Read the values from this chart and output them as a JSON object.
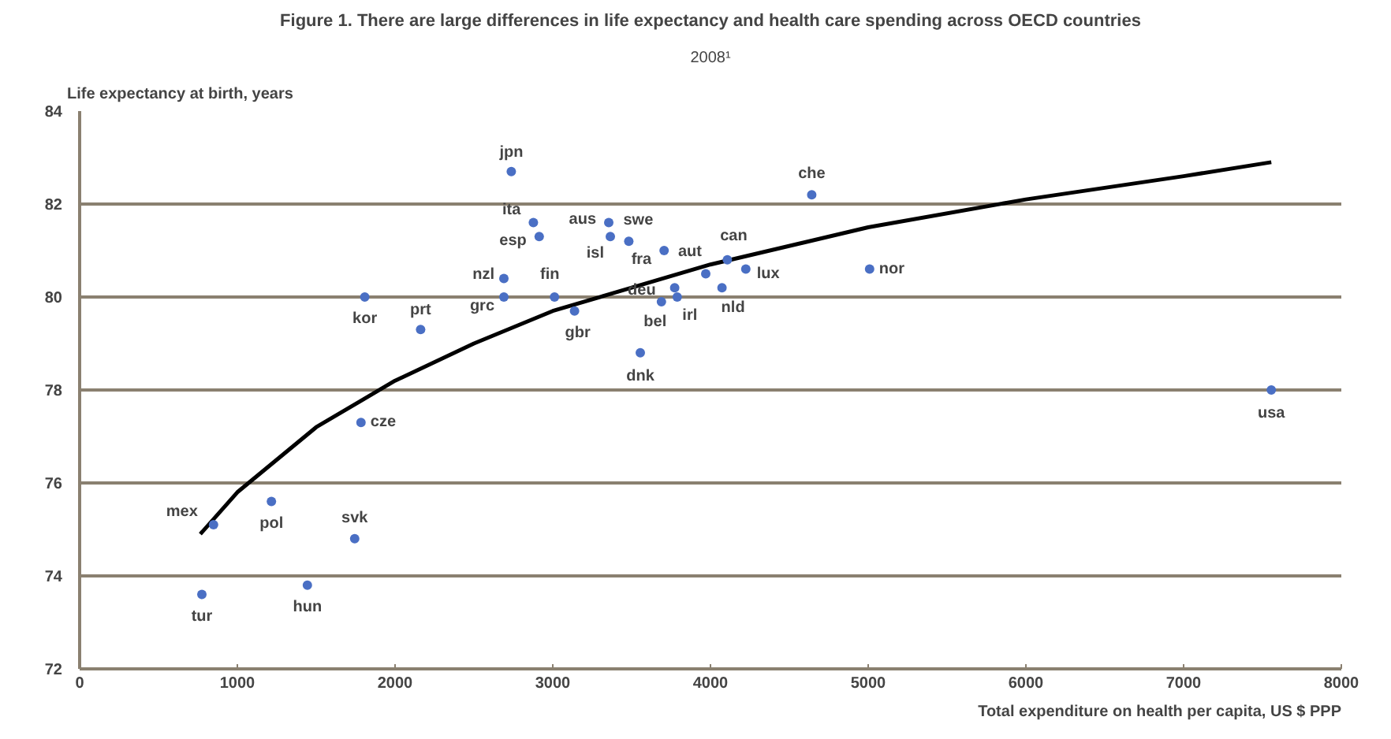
{
  "chart_data": {
    "type": "scatter",
    "title": "Figure 1. There are large differences in life expectancy and health care spending across OECD countries",
    "subtitle": "2008¹",
    "xlabel": "Total expenditure on health per capita, US $ PPP",
    "ylabel": "Life expectancy at birth, years",
    "xlim": [
      0,
      8000
    ],
    "xticks": [
      0,
      1000,
      2000,
      3000,
      4000,
      5000,
      6000,
      7000,
      8000
    ],
    "ylim": [
      72,
      84
    ],
    "yticks": [
      72,
      74,
      76,
      78,
      80,
      82,
      84
    ],
    "grid": "y",
    "series": [
      {
        "marker": "circle",
        "color": "#4a6fc4",
        "x": [
          2737,
          2877,
          2914,
          3355,
          3365,
          3482,
          3706,
          3970,
          4107,
          4224,
          4073,
          3773,
          3689,
          3789,
          3555,
          4642,
          5009,
          7556,
          2690,
          2690,
          3011,
          1808,
          2162,
          3138,
          1784,
          849,
          1216,
          1744,
          775,
          1444
        ],
        "values": [
          82.7,
          81.6,
          81.3,
          81.6,
          81.3,
          81.2,
          81.0,
          80.5,
          80.8,
          80.6,
          80.2,
          80.2,
          79.9,
          80.0,
          78.8,
          82.2,
          80.6,
          78.0,
          80.4,
          80.0,
          80.0,
          80.0,
          79.3,
          79.7,
          77.3,
          75.1,
          75.6,
          74.8,
          73.6,
          73.8
        ]
      },
      {
        "type": "line",
        "marker": "none",
        "color": "#000000",
        "line_style": "solid",
        "x": [
          765,
          1000,
          1500,
          2000,
          2500,
          3000,
          3500,
          4000,
          5000,
          6000,
          7000,
          7556
        ],
        "values": [
          74.9,
          75.8,
          77.2,
          78.2,
          79.0,
          79.7,
          80.2,
          80.7,
          81.5,
          82.1,
          82.6,
          82.9
        ]
      }
    ],
    "annotations": [
      {
        "text": "jpn",
        "x": 2737,
        "y": 82.7
      },
      {
        "text": "ita",
        "x": 2877,
        "y": 81.6
      },
      {
        "text": "esp",
        "x": 2914,
        "y": 81.3
      },
      {
        "text": "aus",
        "x": 3355,
        "y": 81.6
      },
      {
        "text": "isl",
        "x": 3365,
        "y": 81.3
      },
      {
        "text": "swe",
        "x": 3482,
        "y": 81.2
      },
      {
        "text": "fra",
        "x": 3706,
        "y": 81.0
      },
      {
        "text": "aut",
        "x": 3970,
        "y": 80.5
      },
      {
        "text": "can",
        "x": 4107,
        "y": 80.8
      },
      {
        "text": "lux",
        "x": 4224,
        "y": 80.6
      },
      {
        "text": "nld",
        "x": 4073,
        "y": 80.2
      },
      {
        "text": "deu",
        "x": 3773,
        "y": 80.2
      },
      {
        "text": "bel",
        "x": 3689,
        "y": 79.9
      },
      {
        "text": "irl",
        "x": 3789,
        "y": 80.0
      },
      {
        "text": "dnk",
        "x": 3555,
        "y": 78.8
      },
      {
        "text": "che",
        "x": 4642,
        "y": 82.2
      },
      {
        "text": "nor",
        "x": 5009,
        "y": 80.6
      },
      {
        "text": "usa",
        "x": 7556,
        "y": 78.0
      },
      {
        "text": "nzl",
        "x": 2690,
        "y": 80.4
      },
      {
        "text": "grc",
        "x": 2690,
        "y": 80.0
      },
      {
        "text": "fin",
        "x": 3011,
        "y": 80.0
      },
      {
        "text": "kor",
        "x": 1808,
        "y": 80.0
      },
      {
        "text": "prt",
        "x": 2162,
        "y": 79.3
      },
      {
        "text": "gbr",
        "x": 3138,
        "y": 79.7
      },
      {
        "text": "cze",
        "x": 1784,
        "y": 77.3
      },
      {
        "text": "mex",
        "x": 849,
        "y": 75.1
      },
      {
        "text": "pol",
        "x": 1216,
        "y": 75.6
      },
      {
        "text": "svk",
        "x": 1744,
        "y": 74.8
      },
      {
        "text": "tur",
        "x": 775,
        "y": 73.6
      },
      {
        "text": "hun",
        "x": 1444,
        "y": 73.8
      }
    ]
  }
}
